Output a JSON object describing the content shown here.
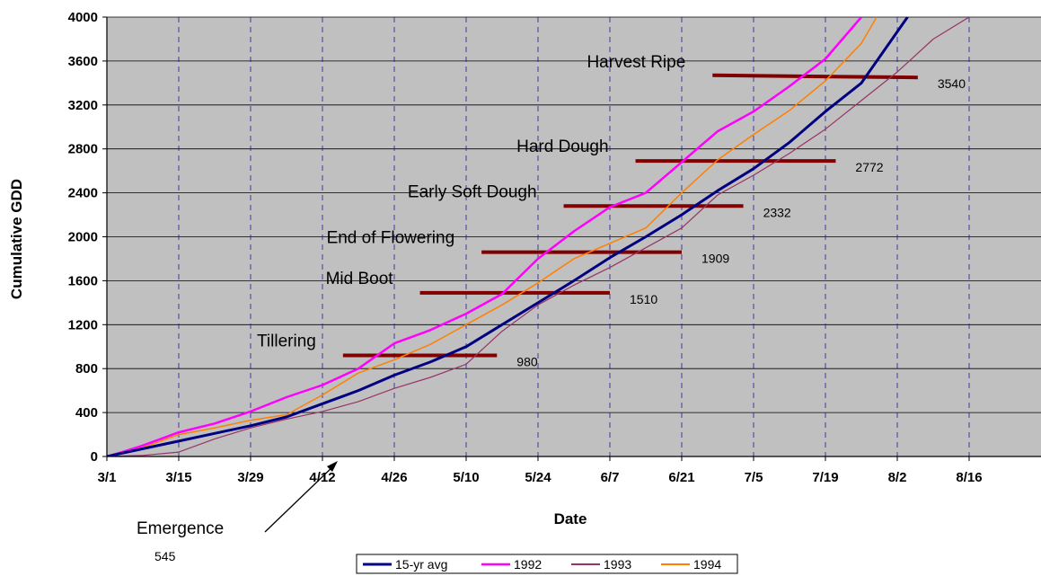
{
  "chart_data": {
    "type": "line",
    "title": "",
    "xlabel": "Date",
    "ylabel": "Cumulative GDD",
    "x_ticks": [
      "3/1",
      "3/15",
      "3/29",
      "4/12",
      "4/26",
      "5/10",
      "5/24",
      "6/7",
      "6/21",
      "7/5",
      "7/19",
      "8/2",
      "8/16"
    ],
    "x_tick_days": [
      0,
      14,
      28,
      42,
      56,
      70,
      84,
      98,
      112,
      126,
      140,
      154,
      168
    ],
    "xlim_days": [
      0,
      182
    ],
    "y_ticks": [
      "0",
      "400",
      "800",
      "1200",
      "1600",
      "2000",
      "2400",
      "2800",
      "3200",
      "3600",
      "4000"
    ],
    "ylim": [
      0,
      4000
    ],
    "grid": true,
    "legend_position": "bottom",
    "series": [
      {
        "name": "15-yr avg",
        "color": "#000080",
        "width": 3,
        "x": [
          0,
          3,
          7,
          14,
          21,
          28,
          35,
          42,
          49,
          56,
          63,
          70,
          77,
          84,
          91,
          98,
          105,
          112,
          119,
          126,
          133,
          140,
          147,
          156
        ],
        "y": [
          0,
          30,
          70,
          140,
          210,
          280,
          360,
          480,
          600,
          740,
          860,
          1000,
          1200,
          1400,
          1600,
          1810,
          2000,
          2200,
          2420,
          2620,
          2860,
          3140,
          3400,
          4000
        ]
      },
      {
        "name": "1992",
        "color": "#FF00FF",
        "width": 2.5,
        "x": [
          0,
          3,
          7,
          14,
          21,
          28,
          35,
          42,
          49,
          56,
          63,
          70,
          77,
          84,
          91,
          98,
          105,
          112,
          119,
          126,
          133,
          140,
          147
        ],
        "y": [
          0,
          40,
          100,
          220,
          300,
          410,
          540,
          650,
          800,
          1030,
          1150,
          1300,
          1480,
          1800,
          2050,
          2270,
          2400,
          2680,
          2960,
          3140,
          3370,
          3620,
          4000
        ]
      },
      {
        "name": "1993",
        "color": "#993366",
        "width": 1.2,
        "x": [
          0,
          7,
          14,
          21,
          28,
          35,
          42,
          49,
          56,
          63,
          70,
          77,
          84,
          91,
          98,
          105,
          112,
          119,
          126,
          133,
          140,
          147,
          154,
          161,
          168
        ],
        "y": [
          0,
          10,
          40,
          160,
          260,
          340,
          410,
          500,
          620,
          720,
          840,
          1140,
          1380,
          1560,
          1720,
          1900,
          2080,
          2380,
          2560,
          2760,
          2980,
          3240,
          3500,
          3800,
          4000
        ]
      },
      {
        "name": "1994",
        "color": "#FF8000",
        "width": 1.5,
        "x": [
          0,
          3,
          7,
          14,
          21,
          28,
          35,
          42,
          49,
          56,
          63,
          70,
          77,
          84,
          91,
          98,
          105,
          112,
          119,
          126,
          133,
          140,
          147,
          150
        ],
        "y": [
          0,
          30,
          80,
          200,
          260,
          330,
          380,
          560,
          760,
          880,
          1020,
          1200,
          1380,
          1580,
          1800,
          1940,
          2080,
          2400,
          2700,
          2930,
          3150,
          3420,
          3760,
          4000
        ]
      }
    ],
    "stages": [
      {
        "name": "Tillering",
        "gdd_label": "980",
        "y": 920,
        "x_start": 46,
        "x_end": 76
      },
      {
        "name": "Mid Boot",
        "gdd_label": "1510",
        "y": 1490,
        "x_start": 61,
        "x_end": 98
      },
      {
        "name": "End of Flowering",
        "gdd_label": "1909",
        "y": 1860,
        "x_start": 73,
        "x_end": 112
      },
      {
        "name": "Early Soft Dough",
        "gdd_label": "2332",
        "y": 2280,
        "x_start": 89,
        "x_end": 124
      },
      {
        "name": "Hard Dough",
        "gdd_label": "2772",
        "y": 2690,
        "x_start": 103,
        "x_end": 142
      },
      {
        "name": "Harvest Ripe",
        "gdd_label": "3540",
        "y_start": 3470,
        "y_end": 3450,
        "x_start": 118,
        "x_end": 158
      }
    ],
    "annotations": [
      {
        "name": "Emergence",
        "value": "545"
      }
    ]
  }
}
